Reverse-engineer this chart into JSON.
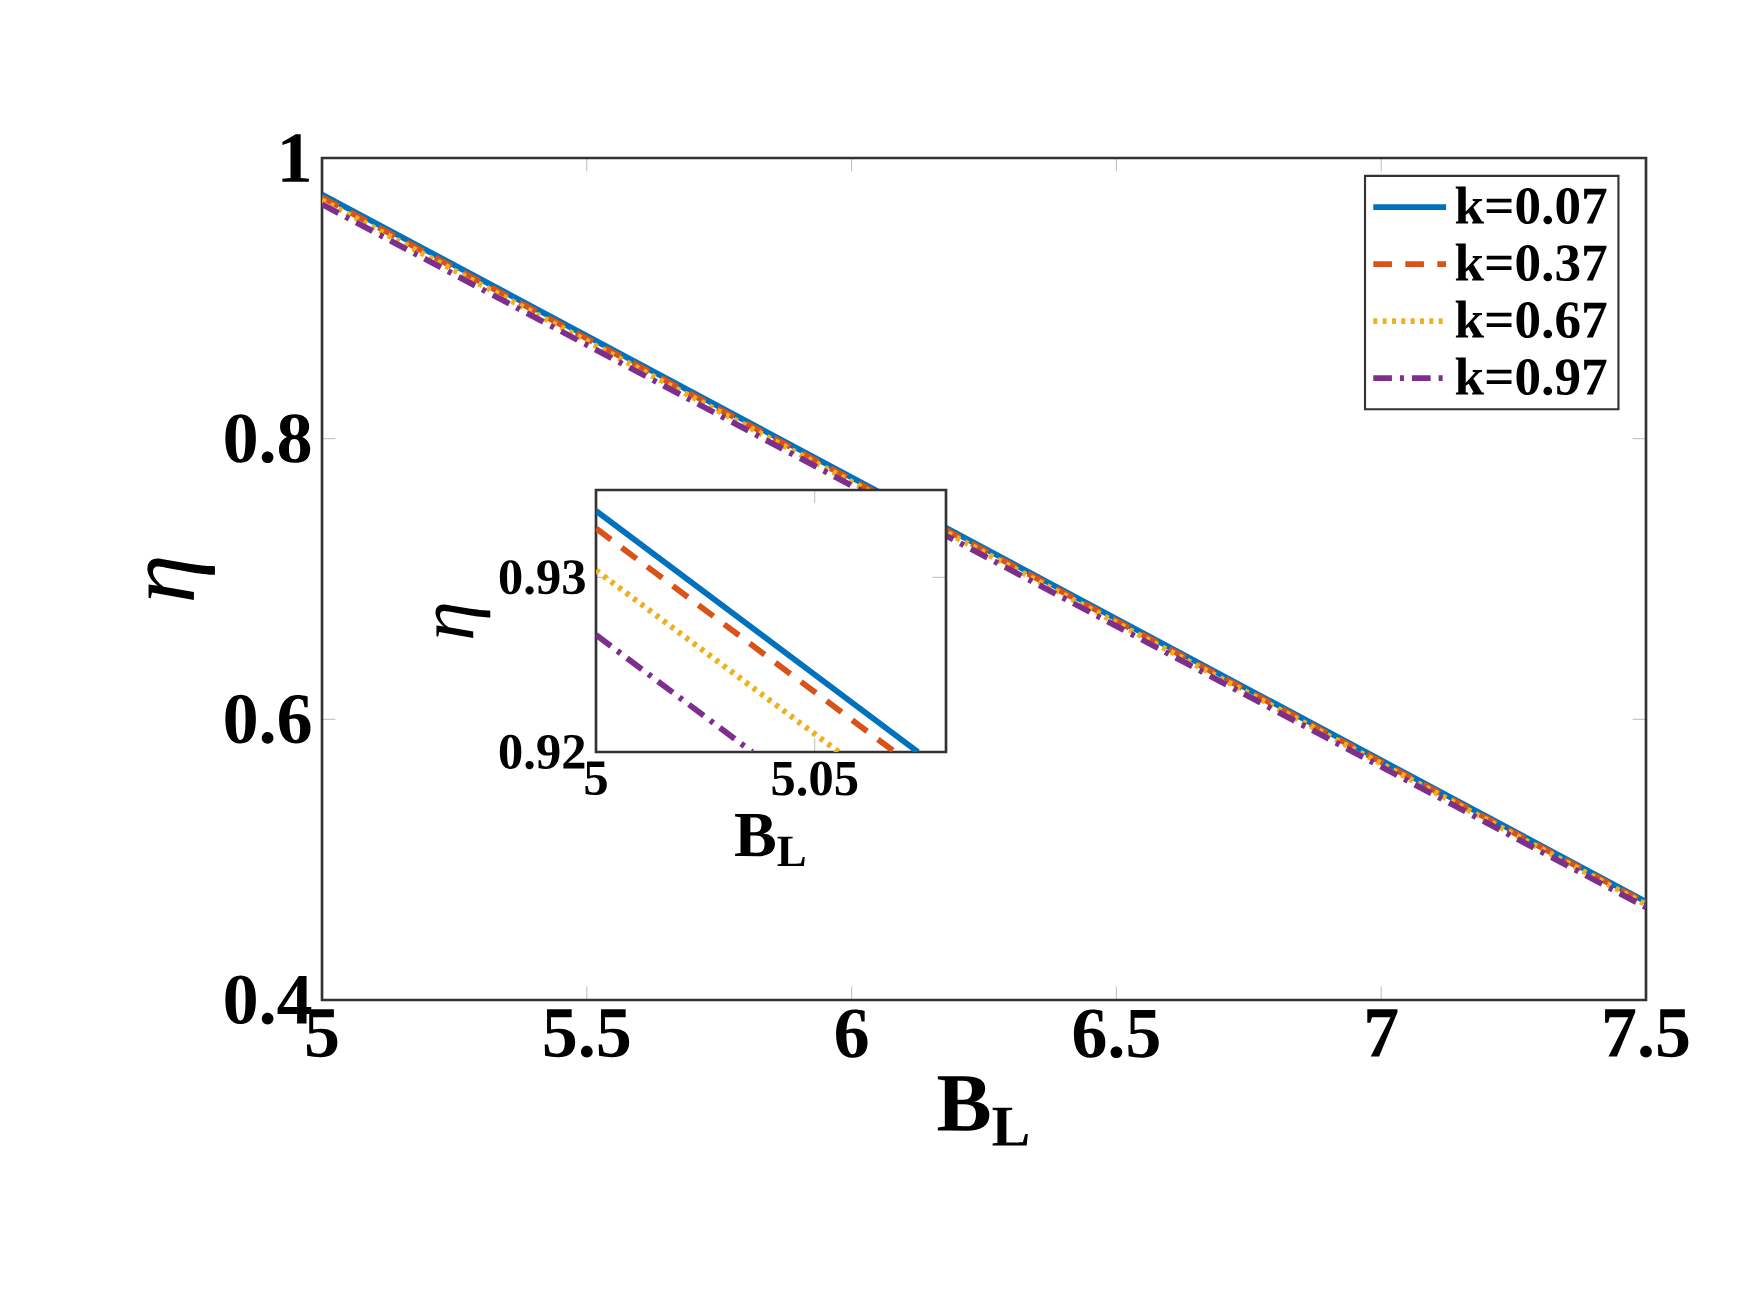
{
  "chart_data": [
    {
      "type": "line",
      "xlabel": "B$_{L}$",
      "ylabel": "η",
      "x": [
        5,
        7.5
      ],
      "xlim": [
        5,
        7.5
      ],
      "ylim": [
        0.4,
        1
      ],
      "xticks": [
        5,
        5.5,
        6,
        6.5,
        7,
        7.5
      ],
      "yticks": [
        0.4,
        0.6,
        0.8,
        1
      ],
      "legend": "top right",
      "series": [
        {
          "name": "k=0.07",
          "color": "#0072bd",
          "line_style": "solid",
          "values": [
            0.974,
            0.47
          ]
        },
        {
          "name": "k=0.37",
          "color": "#d95319",
          "line_style": "dashed",
          "values": [
            0.972,
            0.469
          ]
        },
        {
          "name": "k=0.67",
          "color": "#edb120",
          "line_style": "dotted",
          "values": [
            0.97,
            0.468
          ]
        },
        {
          "name": "k=0.97",
          "color": "#7e2f8e",
          "line_style": "dashdot",
          "values": [
            0.967,
            0.466
          ]
        }
      ]
    },
    {
      "type": "line",
      "xlabel": "B$_{L}$",
      "ylabel": "η",
      "xlim": [
        5,
        5.08
      ],
      "ylim": [
        0.92,
        0.935
      ],
      "xticks": [
        5,
        5.05
      ],
      "yticks": [
        0.92,
        0.93
      ],
      "series": [
        {
          "color": "#0072bd",
          "line_style": "solid",
          "x": [
            5,
            5.0736
          ],
          "values": [
            0.9338,
            0.92
          ]
        },
        {
          "color": "#d95319",
          "line_style": "dashed",
          "x": [
            5,
            5.0683
          ],
          "values": [
            0.9328,
            0.92
          ]
        },
        {
          "color": "#edb120",
          "line_style": "dotted",
          "x": [
            5,
            5.0555
          ],
          "values": [
            0.9304,
            0.92
          ]
        },
        {
          "color": "#7e2f8e",
          "line_style": "dashdot",
          "x": [
            5,
            5.0357
          ],
          "values": [
            0.9267,
            0.92
          ]
        }
      ]
    }
  ]
}
